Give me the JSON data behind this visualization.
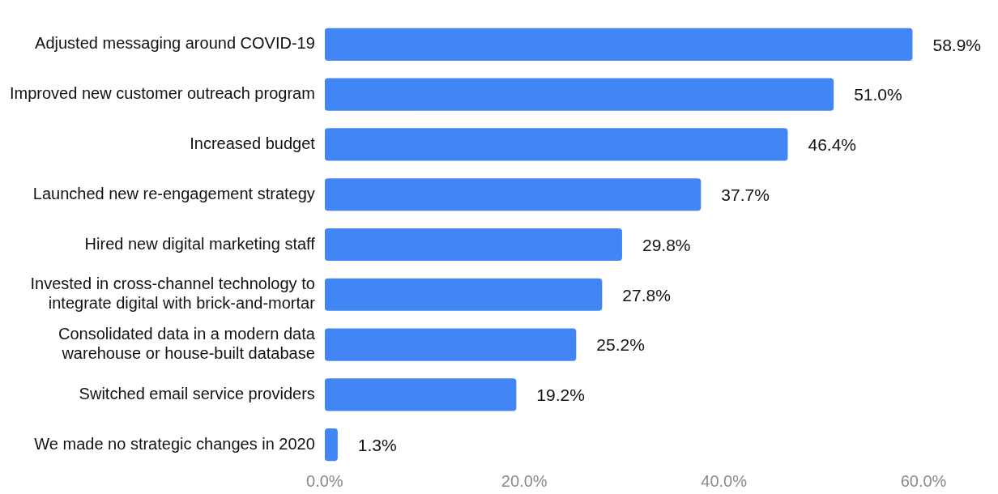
{
  "chart_data": {
    "type": "bar",
    "orientation": "horizontal",
    "categories": [
      "Adjusted messaging around COVID-19",
      "Improved new customer outreach program",
      "Increased budget",
      "Launched new re-engagement strategy",
      "Hired new digital marketing staff",
      "Invested in cross-channel technology to\nintegrate digital with brick-and-mortar",
      "Consolidated data in a modern data\nwarehouse or house-built database",
      "Switched email service providers",
      "We made no strategic changes in 2020"
    ],
    "values": [
      58.9,
      51.0,
      46.4,
      37.7,
      29.8,
      27.8,
      25.2,
      19.2,
      1.3
    ],
    "value_labels": [
      "58.9%",
      "51.0%",
      "46.4%",
      "37.7%",
      "29.8%",
      "27.8%",
      "25.2%",
      "19.2%",
      "1.3%"
    ],
    "color": "#4285f4",
    "xlim": [
      0,
      60
    ],
    "xticks": [
      {
        "value": 0,
        "label": "0.0%"
      },
      {
        "value": 20,
        "label": "20.0%"
      },
      {
        "value": 40,
        "label": "40.0%"
      },
      {
        "value": 60,
        "label": "60.0%"
      }
    ],
    "grid": false,
    "legend": false
  }
}
